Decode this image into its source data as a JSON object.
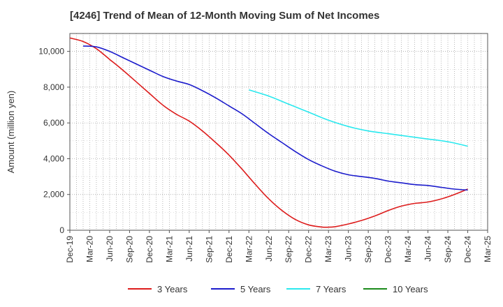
{
  "chart_data": {
    "type": "line",
    "title": "[4246]  Trend of Mean of 12-Month Moving Sum of Net Incomes",
    "xlabel": "",
    "ylabel": "Amount (million yen)",
    "ylim": [
      0,
      11000
    ],
    "yticks": [
      0,
      2000,
      4000,
      6000,
      8000,
      10000
    ],
    "ytick_labels": [
      "0",
      "2,000",
      "4,000",
      "6,000",
      "8,000",
      "10,000"
    ],
    "xlim": [
      0,
      63
    ],
    "xticks": [
      0,
      3,
      6,
      9,
      12,
      15,
      18,
      21,
      24,
      27,
      30,
      33,
      36,
      39,
      42,
      45,
      48,
      51,
      54,
      57,
      60,
      63
    ],
    "xtick_labels": [
      "Dec-19",
      "Mar-20",
      "Jun-20",
      "Sep-20",
      "Dec-20",
      "Mar-21",
      "Jun-21",
      "Sep-21",
      "Dec-21",
      "Mar-22",
      "Jun-22",
      "Sep-22",
      "Dec-22",
      "Mar-23",
      "Jun-23",
      "Sep-23",
      "Dec-23",
      "Mar-24",
      "Jun-24",
      "Sep-24",
      "Dec-24",
      "Mar-25"
    ],
    "grid": true,
    "legend_position": "bottom",
    "series": [
      {
        "name": "3 Years",
        "color": "#dd1c1c",
        "x": [
          0,
          2,
          4,
          6,
          8,
          10,
          12,
          14,
          16,
          18,
          20,
          22,
          24,
          26,
          28,
          30,
          32,
          34,
          36,
          38,
          39,
          40,
          42,
          44,
          46,
          48,
          50,
          52,
          54,
          56,
          58,
          60
        ],
        "y": [
          10750,
          10550,
          10150,
          9550,
          8950,
          8300,
          7650,
          7000,
          6500,
          6100,
          5550,
          4900,
          4200,
          3400,
          2550,
          1750,
          1100,
          600,
          300,
          180,
          170,
          200,
          350,
          550,
          800,
          1100,
          1350,
          1500,
          1580,
          1750,
          2000,
          2300
        ]
      },
      {
        "name": "5 Years",
        "color": "#1c1ccc",
        "x": [
          2,
          4,
          6,
          8,
          10,
          12,
          14,
          16,
          18,
          20,
          22,
          24,
          26,
          28,
          30,
          32,
          34,
          36,
          38,
          40,
          42,
          44,
          46,
          48,
          50,
          52,
          54,
          56,
          58,
          60
        ],
        "y": [
          10300,
          10250,
          10000,
          9650,
          9300,
          8950,
          8600,
          8350,
          8150,
          7800,
          7400,
          6950,
          6500,
          5950,
          5400,
          4900,
          4400,
          3950,
          3600,
          3300,
          3100,
          3000,
          2900,
          2750,
          2650,
          2550,
          2500,
          2400,
          2300,
          2250
        ]
      },
      {
        "name": "7 Years",
        "color": "#2ae8ee",
        "x": [
          27,
          30,
          33,
          36,
          39,
          42,
          45,
          48,
          51,
          54,
          57,
          60
        ],
        "y": [
          7850,
          7500,
          7050,
          6600,
          6150,
          5800,
          5550,
          5400,
          5250,
          5100,
          4950,
          4700
        ]
      },
      {
        "name": "10 Years",
        "color": "#1a8a1a",
        "x": [],
        "y": []
      }
    ]
  }
}
